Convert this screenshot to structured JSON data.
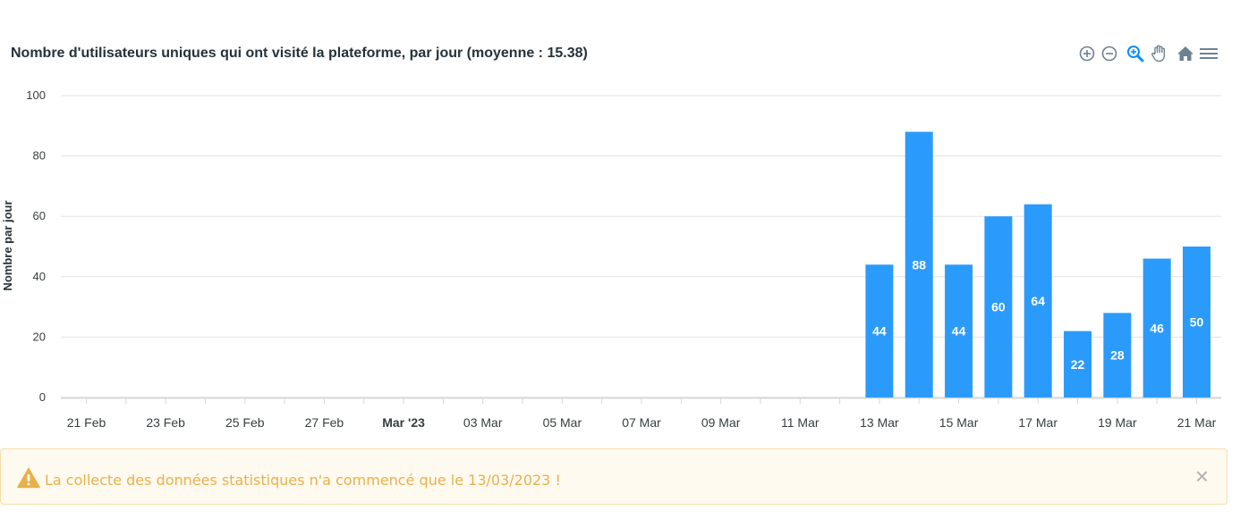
{
  "chart": {
    "title": "Nombre d'utilisateurs uniques qui ont visité la plateforme, par jour (moyenne : 15.38)"
  },
  "toolbar": {
    "icons": [
      "zoom-in-icon",
      "zoom-out-icon",
      "selection-zoom-icon",
      "pan-icon",
      "home-reset-icon",
      "menu-icon"
    ],
    "active": "selection-zoom-icon",
    "icon_color": "#6e8192",
    "active_color": "#008ffb"
  },
  "alert": {
    "text": "La collecte des données statistiques n'a commencé que le 13/03/2023 !",
    "close_label": "×",
    "color": "#e9b04a"
  },
  "chart_data": {
    "type": "bar",
    "title": "Nombre d'utilisateurs uniques qui ont visité la plateforme, par jour (moyenne : 15.38)",
    "xlabel": "",
    "ylabel": "Nombre par jour",
    "ylim": [
      0,
      100
    ],
    "yticks": [
      "0",
      "20",
      "40",
      "60",
      "80",
      "100"
    ],
    "grid": true,
    "bar_color": "#2b9bfb",
    "dates": [
      "2023-02-21",
      "2023-02-22",
      "2023-02-23",
      "2023-02-24",
      "2023-02-25",
      "2023-02-26",
      "2023-02-27",
      "2023-02-28",
      "2023-03-01",
      "2023-03-02",
      "2023-03-03",
      "2023-03-04",
      "2023-03-05",
      "2023-03-06",
      "2023-03-07",
      "2023-03-08",
      "2023-03-09",
      "2023-03-10",
      "2023-03-11",
      "2023-03-12",
      "2023-03-13",
      "2023-03-14",
      "2023-03-15",
      "2023-03-16",
      "2023-03-17",
      "2023-03-18",
      "2023-03-19",
      "2023-03-20",
      "2023-03-21"
    ],
    "values": [
      0,
      0,
      0,
      0,
      0,
      0,
      0,
      0,
      0,
      0,
      0,
      0,
      0,
      0,
      0,
      0,
      0,
      0,
      0,
      0,
      44,
      88,
      44,
      60,
      64,
      22,
      28,
      46,
      50
    ],
    "tick_labels": [
      "21 Feb",
      "",
      "23 Feb",
      "",
      "25 Feb",
      "",
      "27 Feb",
      "",
      "Mar '23",
      "",
      "03 Mar",
      "",
      "05 Mar",
      "",
      "07 Mar",
      "",
      "09 Mar",
      "",
      "11 Mar",
      "",
      "13 Mar",
      "",
      "15 Mar",
      "",
      "17 Mar",
      "",
      "19 Mar",
      "",
      "21 Mar"
    ],
    "bold_tick": "Mar '23"
  }
}
